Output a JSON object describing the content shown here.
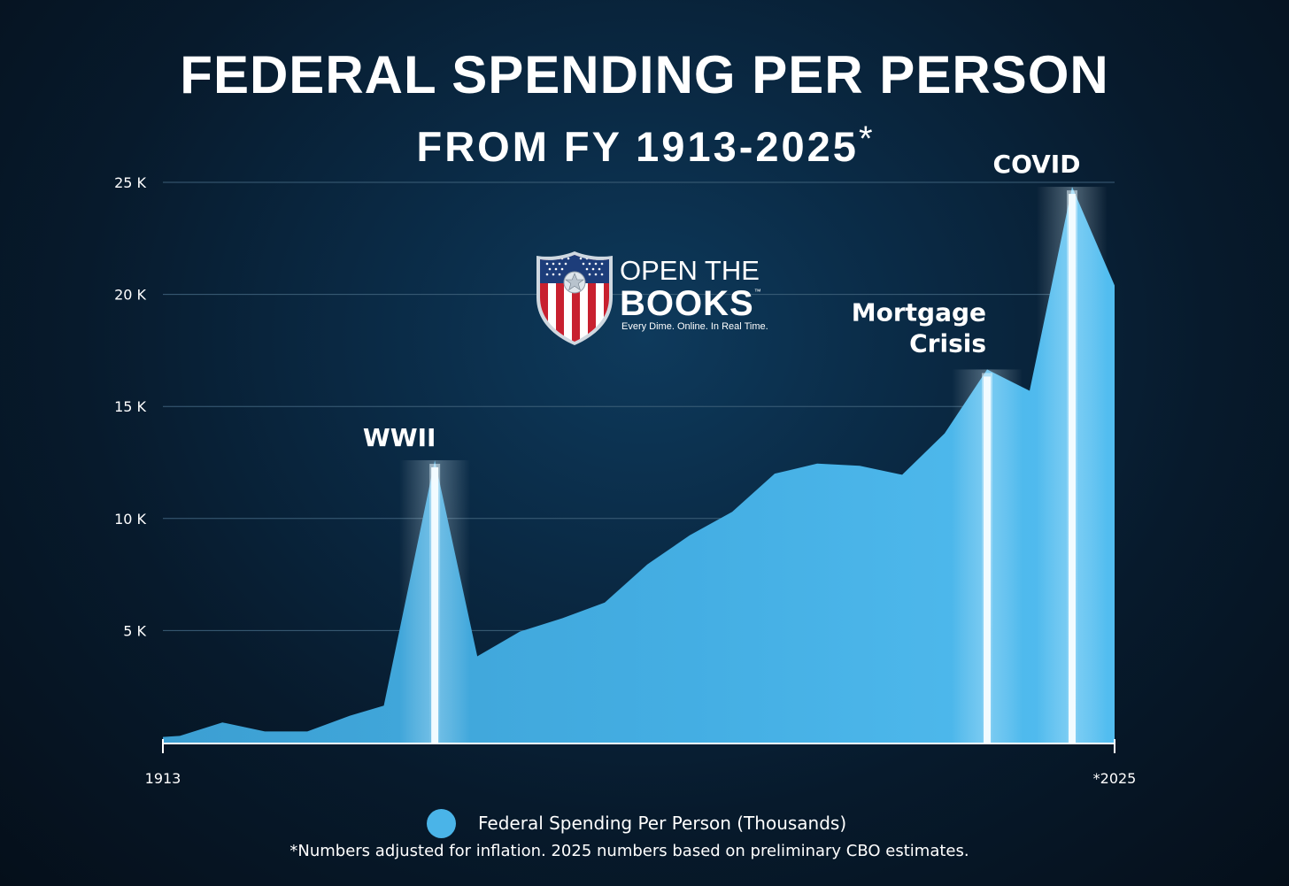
{
  "title": "FEDERAL SPENDING PER PERSON",
  "subtitle": "FROM FY 1913-2025",
  "subtitle_mark": "*",
  "logo": {
    "line1": "OPEN THE",
    "line2": "BOOKS",
    "trademark": "™",
    "tagline": "Every Dime. Online. In Real Time."
  },
  "legend_label": "Federal Spending Per Person (Thousands)",
  "footnote": "*Numbers adjusted for inflation. 2025 numbers based on preliminary CBO estimates.",
  "colors": {
    "area": "#4ab4e8",
    "gridline": "#3c5f78",
    "background": "#071a2c"
  },
  "chart_data": {
    "type": "area",
    "title": "FEDERAL SPENDING PER PERSON",
    "subtitle": "FROM FY 1913-2025*",
    "series_name": "Federal Spending Per Person (Thousands)",
    "xlim": [
      1913,
      2025
    ],
    "ylim": [
      0,
      25000
    ],
    "yticks": [
      5000,
      10000,
      15000,
      20000,
      25000
    ],
    "ytick_labels": [
      "5 K",
      "10 K",
      "15 K",
      "20 K",
      "25 K"
    ],
    "xtick_labels": [
      {
        "x": 1913,
        "label": "1913"
      },
      {
        "x": 2025,
        "label": "*2025"
      }
    ],
    "grid": true,
    "points": [
      [
        1913,
        250
      ],
      [
        1915,
        300
      ],
      [
        1920,
        900
      ],
      [
        1925,
        500
      ],
      [
        1930,
        500
      ],
      [
        1935,
        1200
      ],
      [
        1939,
        1650
      ],
      [
        1945,
        12600
      ],
      [
        1950,
        3850
      ],
      [
        1955,
        4950
      ],
      [
        1960,
        5550
      ],
      [
        1965,
        6250
      ],
      [
        1970,
        7950
      ],
      [
        1975,
        9250
      ],
      [
        1980,
        10300
      ],
      [
        1985,
        12000
      ],
      [
        1990,
        12450
      ],
      [
        1995,
        12350
      ],
      [
        2000,
        11950
      ],
      [
        2005,
        13800
      ],
      [
        2010,
        16650
      ],
      [
        2015,
        15700
      ],
      [
        2020,
        24800
      ],
      [
        2025,
        20400
      ]
    ],
    "annotations": [
      {
        "x": 1945,
        "y": 12600,
        "label": "WWII"
      },
      {
        "x": 2010,
        "y": 16650,
        "label": "Mortgage Crisis",
        "lines": [
          "Mortgage",
          "Crisis"
        ]
      },
      {
        "x": 2020,
        "y": 24800,
        "label": "COVID"
      }
    ]
  }
}
